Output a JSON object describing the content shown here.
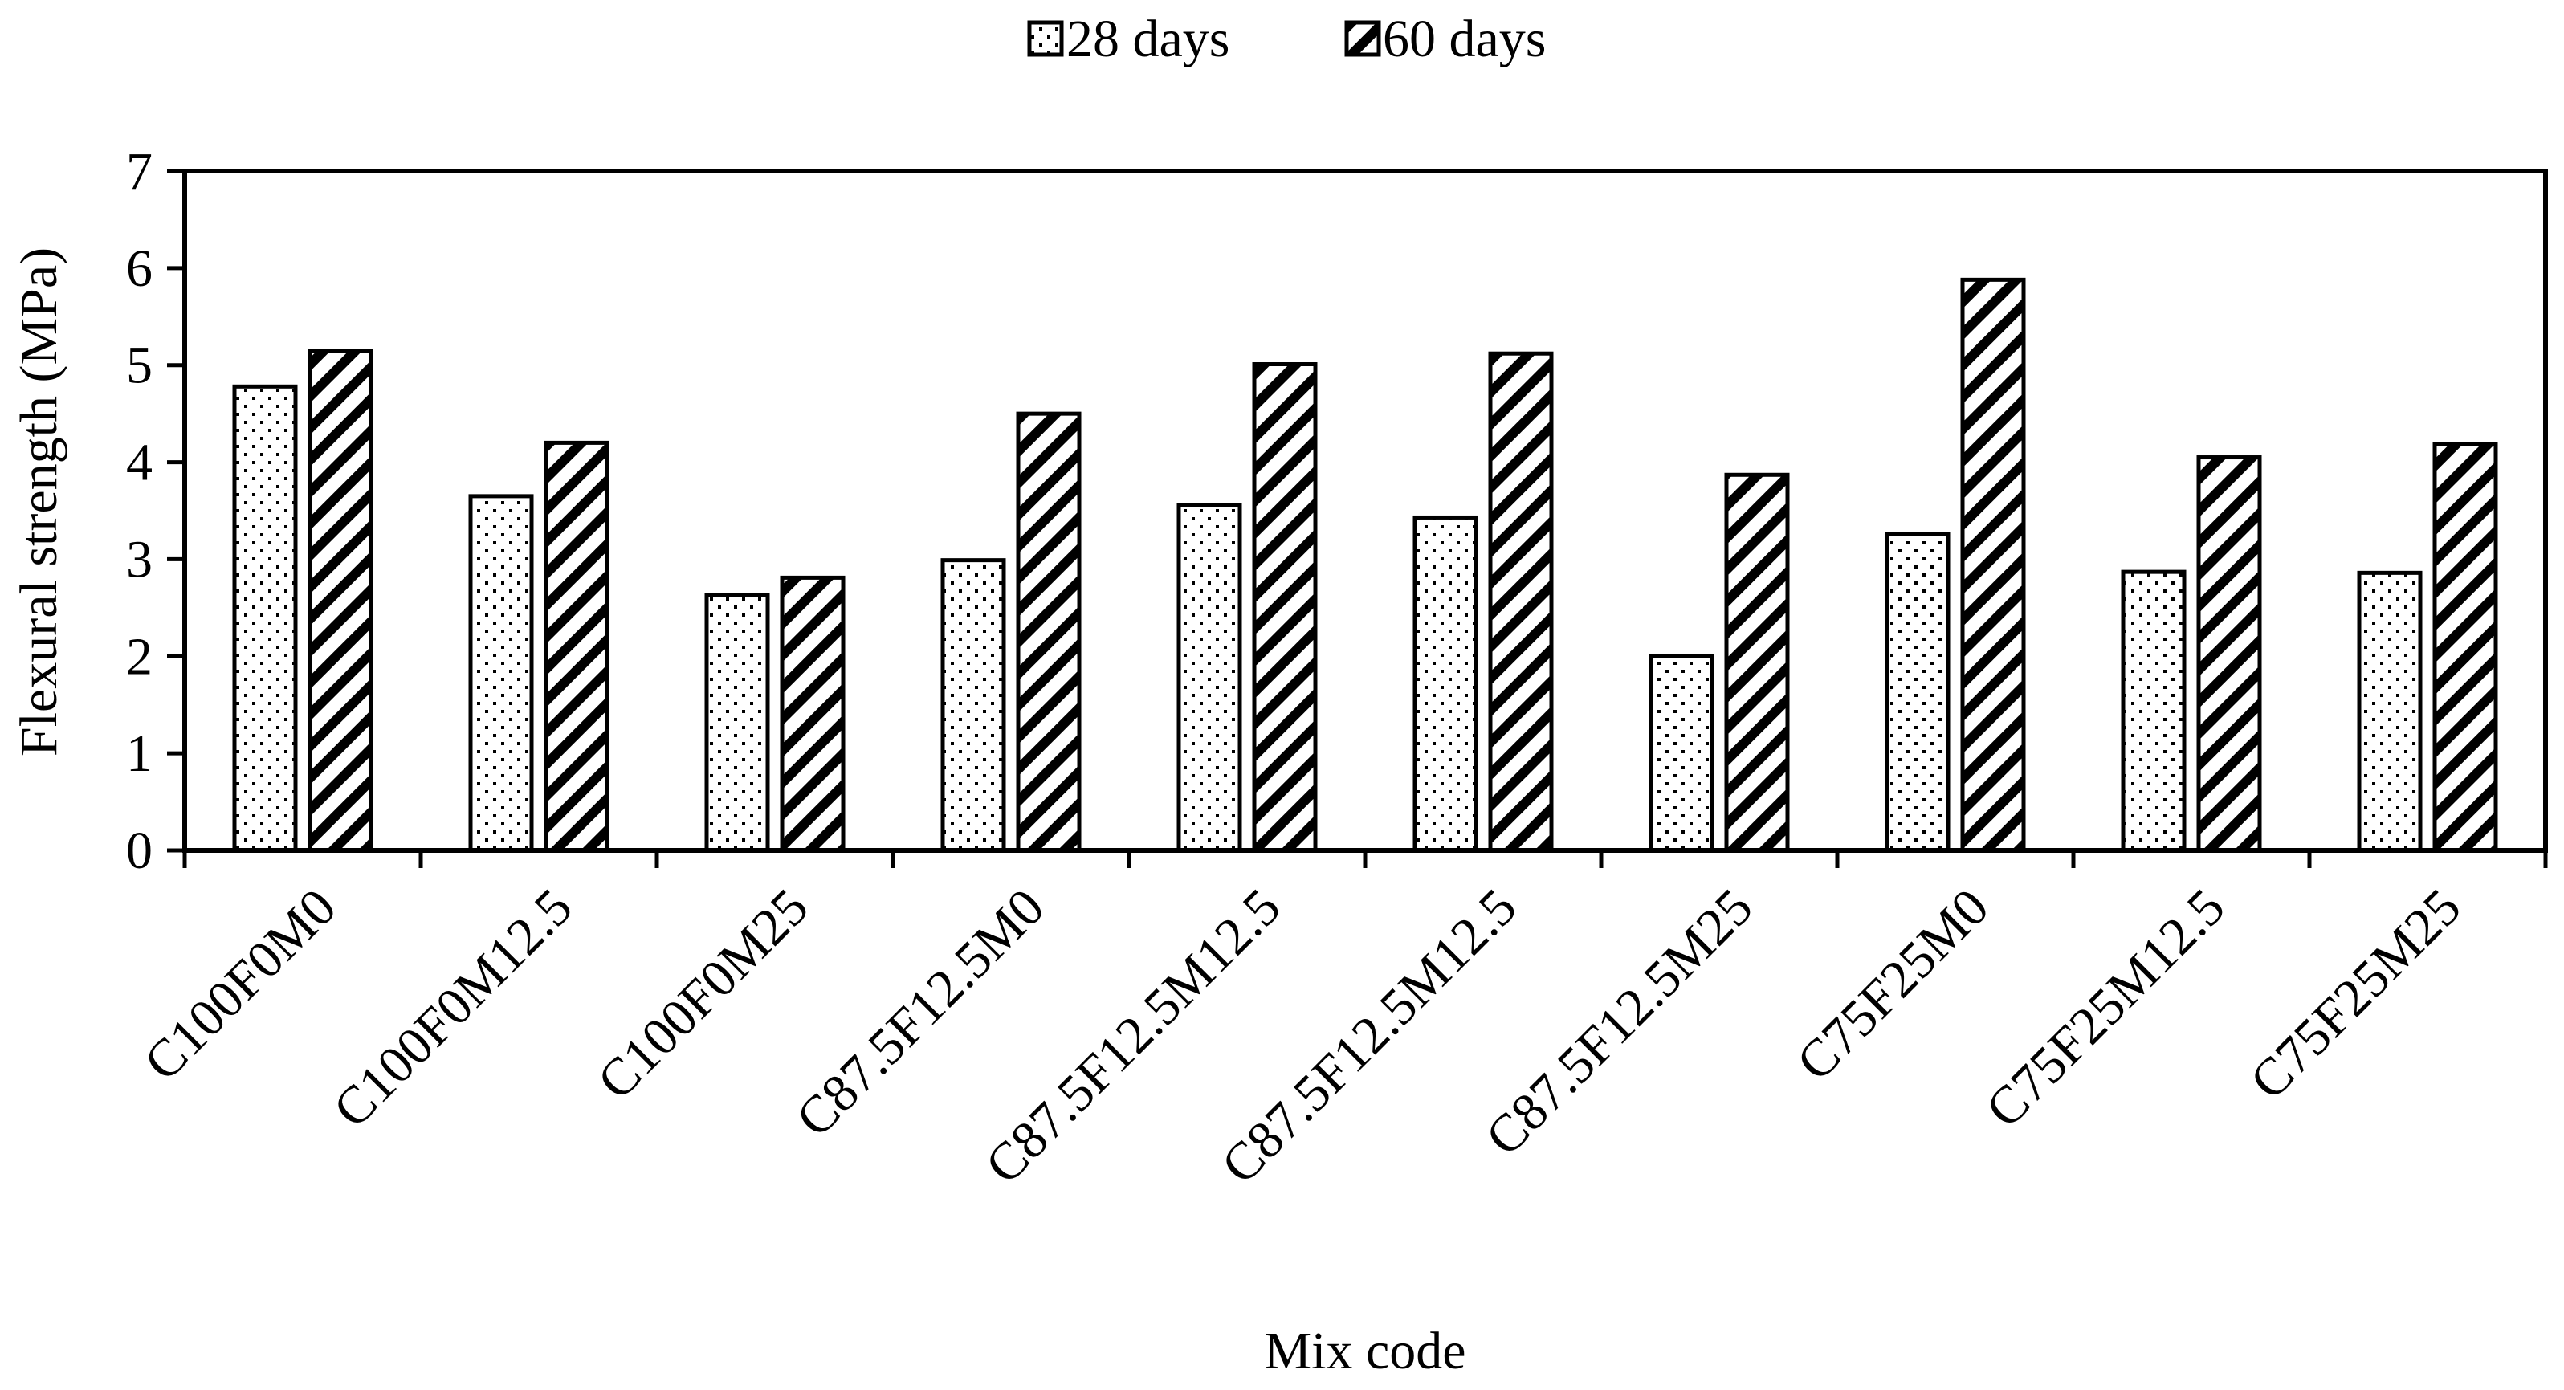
{
  "chart_data": {
    "type": "bar",
    "title": "",
    "xlabel": "Mix code",
    "ylabel": "Flexural strength (MPa)",
    "ylim": [
      0,
      7
    ],
    "yticks": [
      0,
      1,
      2,
      3,
      4,
      5,
      6,
      7
    ],
    "grid": false,
    "legend_position": "top-center",
    "categories": [
      "C100F0M0",
      "C100F0M12.5",
      "C100F0M25",
      "C87.5F12.5M0",
      "C87.5F12.5M12.5",
      "C87.5F12.5M12.5",
      "C87.5F12.5M25",
      "C75F25M0",
      "C75F25M12.5",
      "C75F25M25"
    ],
    "series": [
      {
        "name": "28 days",
        "pattern": "dots",
        "values": [
          4.78,
          3.65,
          2.63,
          2.99,
          3.56,
          3.43,
          2.0,
          3.26,
          2.87,
          2.86
        ]
      },
      {
        "name": "60 days",
        "pattern": "diagonal-stripes",
        "values": [
          5.15,
          4.2,
          2.81,
          4.5,
          5.01,
          5.12,
          3.87,
          5.88,
          4.05,
          4.19
        ]
      }
    ],
    "colors": {
      "axis": "#000000",
      "bar_fill": "#ffffff",
      "pattern": "#000000"
    }
  }
}
